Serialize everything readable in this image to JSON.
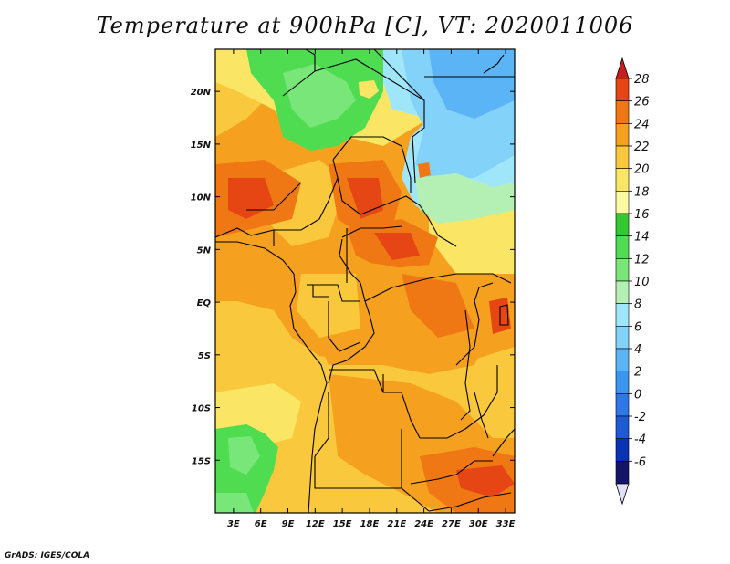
{
  "title": "Temperature at 900hPa [C], VT: 2020011006",
  "credit": "GrADS: IGES/COLA",
  "map": {
    "variable": "Temperature at 900hPa",
    "units": "C",
    "valid_time": "2020011006",
    "lon_range": [
      1.0,
      34.0
    ],
    "lat_range": [
      -20.0,
      24.0
    ],
    "lon_ticks": [
      3,
      6,
      9,
      12,
      15,
      18,
      21,
      24,
      27,
      30,
      33
    ],
    "lon_tick_labels": [
      "3E",
      "6E",
      "9E",
      "12E",
      "15E",
      "18E",
      "21E",
      "24E",
      "27E",
      "30E",
      "33E"
    ],
    "lat_ticks": [
      20,
      15,
      10,
      5,
      0,
      -5,
      -10,
      -15
    ],
    "lat_tick_labels": [
      "20N",
      "15N",
      "10N",
      "5N",
      "EQ",
      "5S",
      "10S",
      "15S"
    ]
  },
  "colorbar": {
    "levels": [
      -6,
      -4,
      -2,
      0,
      2,
      4,
      6,
      8,
      10,
      12,
      14,
      16,
      18,
      20,
      22,
      24,
      26,
      28
    ],
    "labels": [
      "-6",
      "-4",
      "-2",
      "0",
      "2",
      "4",
      "6",
      "8",
      "10",
      "12",
      "14",
      "16",
      "18",
      "20",
      "22",
      "24",
      "26",
      "28"
    ],
    "colors": [
      "#141468",
      "#0a32b4",
      "#1e5ad2",
      "#2d78e6",
      "#3c96f0",
      "#5ab4f5",
      "#82d2fa",
      "#a0e6fa",
      "#b4f0b4",
      "#78e678",
      "#50dc50",
      "#32c832",
      "#fafaa0",
      "#fae664",
      "#fac83c",
      "#f5a01e",
      "#f07814",
      "#e64614",
      "#c81e1e"
    ],
    "under_color": "#e0e0f8",
    "over_color": "#c81e1e"
  },
  "regions": {
    "sahara_green": "Sahara green zone 14C",
    "nile_cool": "Nile valley cool zone",
    "equatorial_warm": "Equatorial warm zone 22-24C",
    "angola_green": "Angola coast green zone"
  }
}
